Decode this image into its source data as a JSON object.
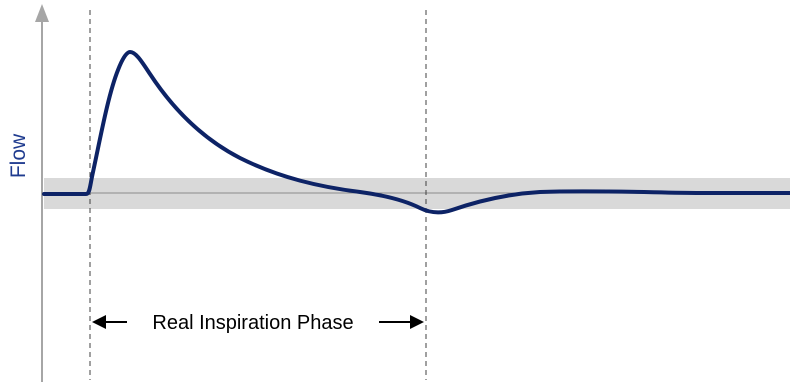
{
  "diagram": {
    "y_axis_label": "Flow",
    "phase_label": "Real Inspiration Phase",
    "colors": {
      "curve": "#0d2366",
      "axis": "#a6a6a6",
      "band": "#d9d9d9",
      "baseline": "#8c8c8c",
      "marker_lines": "#404040",
      "label_text": "#1f3b8f",
      "phase_text": "#000000"
    }
  }
}
